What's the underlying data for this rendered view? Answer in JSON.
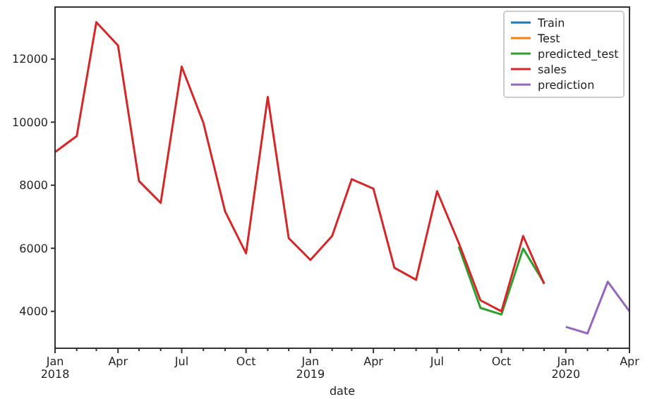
{
  "chart_data": {
    "type": "line",
    "xlabel": "date",
    "legend": "top right",
    "grid": false,
    "xlim": [
      "2018-01",
      "2020-04"
    ],
    "ylim": [
      2830,
      13650
    ],
    "yticks": [
      4000,
      6000,
      8000,
      10000,
      12000
    ],
    "xticks": [
      {
        "value": "2018-01",
        "label": "Jan\n2018"
      },
      {
        "value": "2018-02",
        "label": null
      },
      {
        "value": "2018-03",
        "label": null
      },
      {
        "value": "2018-04",
        "label": "Apr"
      },
      {
        "value": "2018-05",
        "label": null
      },
      {
        "value": "2018-06",
        "label": null
      },
      {
        "value": "2018-07",
        "label": "Jul"
      },
      {
        "value": "2018-08",
        "label": null
      },
      {
        "value": "2018-09",
        "label": null
      },
      {
        "value": "2018-10",
        "label": "Oct"
      },
      {
        "value": "2018-11",
        "label": null
      },
      {
        "value": "2018-12",
        "label": null
      },
      {
        "value": "2019-01",
        "label": "Jan\n2019"
      },
      {
        "value": "2019-02",
        "label": null
      },
      {
        "value": "2019-03",
        "label": null
      },
      {
        "value": "2019-04",
        "label": "Apr"
      },
      {
        "value": "2019-05",
        "label": null
      },
      {
        "value": "2019-06",
        "label": null
      },
      {
        "value": "2019-07",
        "label": "Jul"
      },
      {
        "value": "2019-08",
        "label": null
      },
      {
        "value": "2019-09",
        "label": null
      },
      {
        "value": "2019-10",
        "label": "Oct"
      },
      {
        "value": "2019-11",
        "label": null
      },
      {
        "value": "2019-12",
        "label": null
      },
      {
        "value": "2020-01",
        "label": "Jan\n2020"
      },
      {
        "value": "2020-02",
        "label": null
      },
      {
        "value": "2020-03",
        "label": null
      },
      {
        "value": "2020-04",
        "label": "Apr"
      }
    ],
    "series": [
      {
        "name": "Train",
        "color": "#1f77b4"
      },
      {
        "name": "Test",
        "color": "#ff7f0e"
      },
      {
        "name": "predicted_test",
        "color": "#2ca02c",
        "x": [
          "2019-08",
          "2019-09",
          "2019-10",
          "2019-11",
          "2019-12"
        ],
        "values": [
          6050,
          4110,
          3900,
          5990,
          4900
        ]
      },
      {
        "name": "sales",
        "color": "#d62728",
        "x": [
          "2018-01",
          "2018-02",
          "2018-03",
          "2018-04",
          "2018-05",
          "2018-06",
          "2018-07",
          "2018-08",
          "2018-09",
          "2018-10",
          "2018-11",
          "2018-12",
          "2019-01",
          "2019-02",
          "2019-03",
          "2019-04",
          "2019-05",
          "2019-06",
          "2019-07",
          "2019-08",
          "2019-09",
          "2019-10",
          "2019-11",
          "2019-12"
        ],
        "values": [
          9050,
          9560,
          13170,
          12430,
          8130,
          7440,
          11760,
          9980,
          7170,
          5840,
          10800,
          6320,
          5630,
          6390,
          8190,
          7890,
          5380,
          5000,
          7810,
          6170,
          4350,
          4000,
          6390,
          4870
        ]
      },
      {
        "name": "prediction",
        "color": "#9467bd",
        "x": [
          "2020-01",
          "2020-02",
          "2020-03",
          "2020-04"
        ],
        "values": [
          3510,
          3300,
          4940,
          4000
        ]
      }
    ]
  }
}
